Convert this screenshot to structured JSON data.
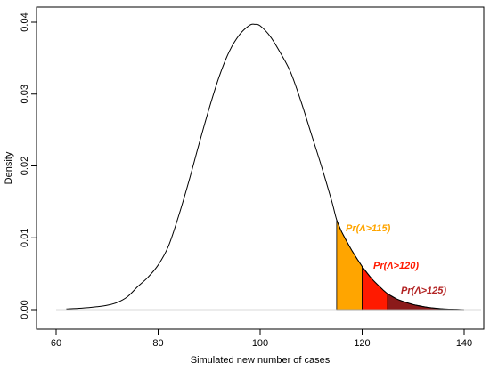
{
  "chart_data": {
    "type": "area",
    "xlabel": "Simulated new number of cases",
    "ylabel": "Density",
    "xlim": [
      60,
      142
    ],
    "ylim": [
      -0.001,
      0.041
    ],
    "x_ticks": [
      60,
      80,
      100,
      120,
      140
    ],
    "x_tick_labels": [
      "60",
      "80",
      "100",
      "120",
      "140"
    ],
    "y_ticks": [
      0.0,
      0.01,
      0.02,
      0.03,
      0.04
    ],
    "y_tick_labels": [
      "0.00",
      "0.01",
      "0.02",
      "0.03",
      "0.04"
    ],
    "grid": false,
    "series": [
      {
        "type": "line",
        "x": [
          62,
          65,
          68,
          70,
          72,
          74,
          76,
          78,
          80,
          82,
          84,
          86,
          88,
          90,
          92,
          94,
          96,
          98,
          99,
          100,
          102,
          104,
          106,
          108,
          110,
          112,
          114,
          115,
          116,
          118,
          120,
          122,
          124,
          125,
          127,
          130,
          133,
          136,
          138,
          140
        ],
        "y": [
          0.0001,
          0.0002,
          0.0004,
          0.0006,
          0.001,
          0.0018,
          0.0032,
          0.0045,
          0.0062,
          0.0088,
          0.013,
          0.0178,
          0.023,
          0.028,
          0.0325,
          0.036,
          0.0383,
          0.0396,
          0.0397,
          0.0395,
          0.038,
          0.0357,
          0.033,
          0.029,
          0.0245,
          0.02,
          0.0152,
          0.0125,
          0.0108,
          0.0082,
          0.006,
          0.0042,
          0.0028,
          0.0022,
          0.0014,
          0.0007,
          0.0003,
          0.0001,
          5e-05,
          0.0
        ]
      }
    ],
    "regions": [
      {
        "label": "Pr(Λ>115)",
        "from": 115,
        "to": 120,
        "color": "#FFA500"
      },
      {
        "label": "Pr(Λ>120)",
        "from": 120,
        "to": 125,
        "color": "#FF1A00"
      },
      {
        "label": "Pr(Λ>125)",
        "from": 125,
        "to": 140,
        "color": "#8B1A1A"
      }
    ],
    "label_colors": [
      "#FFA500",
      "#FF1A00",
      "#B22222"
    ]
  }
}
